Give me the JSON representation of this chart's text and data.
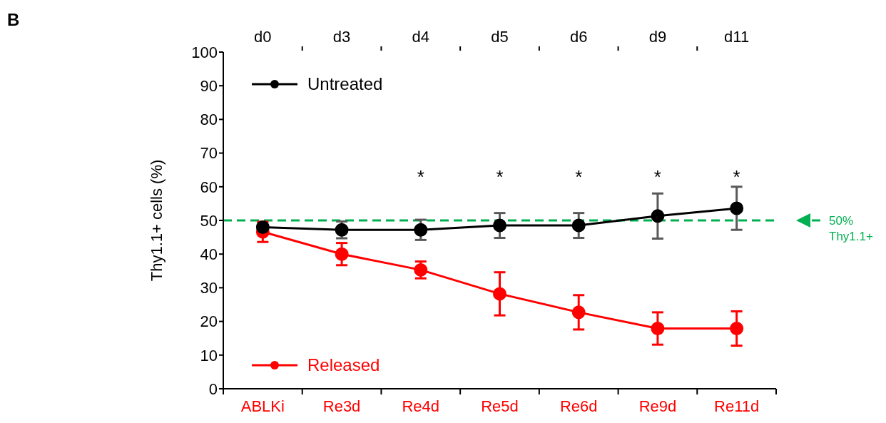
{
  "chart_data": {
    "type": "line",
    "ylabel": "Thy1.1+ cells (%)",
    "categories": [
      "ABLKi",
      "Re3d",
      "Re4d",
      "Re5d",
      "Re6d",
      "Re9d",
      "Re11d"
    ],
    "series": [
      {
        "name": "Untreated",
        "color": "#000000",
        "values": [
          48,
          47.2,
          47.2,
          48.5,
          48.5,
          51.3,
          53.6
        ],
        "errors": [
          1,
          2.5,
          3,
          3.7,
          3.7,
          6.7,
          6.4
        ]
      },
      {
        "name": "Released",
        "color": "#ff0000",
        "values": [
          46.6,
          40,
          35.3,
          28.2,
          22.7,
          17.9,
          17.9
        ],
        "errors": [
          3,
          3.3,
          2.5,
          6.4,
          5.1,
          4.8,
          5.1
        ]
      }
    ],
    "ylim": [
      0,
      100
    ],
    "yticks": [
      0,
      10,
      20,
      30,
      40,
      50,
      60,
      70,
      80,
      90,
      100
    ],
    "grid": false,
    "marker": "circle",
    "line_style": "solid",
    "legend": "left",
    "ref_lines": [
      {
        "axis": "y",
        "value": 50,
        "label": "50% Thy1.1+",
        "color": "#00b050",
        "line_style": "dashed"
      }
    ],
    "annotations": [
      "B",
      "d0",
      "d3",
      "d4",
      "d5",
      "d6",
      "d9",
      "d11",
      "*",
      "*",
      "*",
      "*",
      "*"
    ]
  }
}
